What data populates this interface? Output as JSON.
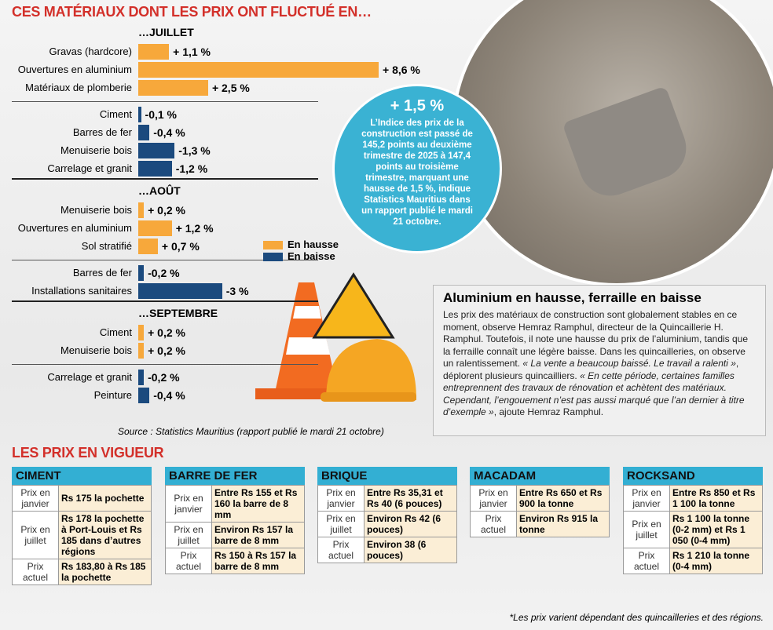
{
  "chart_data": {
    "type": "bar",
    "title": "CES MATÉRIAUX DONT LES PRIX ONT FLUCTUÉ EN…",
    "xlim": [
      0,
      9
    ],
    "legend": [
      {
        "name": "En hausse",
        "color": "#f7a83b"
      },
      {
        "name": "En baisse",
        "color": "#1b4a7e"
      }
    ],
    "groups": [
      {
        "title": "…JUILLET",
        "categories": [
          "Gravas (hardcore)",
          "Ouvertures en aluminium",
          "Matériaux de plomberie",
          "Ciment",
          "Barres de fer",
          "Menuiserie bois",
          "Carrelage et granit"
        ],
        "values": [
          1.1,
          8.6,
          2.5,
          -0.1,
          -0.4,
          -1.3,
          -1.2
        ],
        "value_labels": [
          "+ 1,1 %",
          "+ 8,6 %",
          "+ 2,5 %",
          "-0,1 %",
          "-0,4 %",
          "-1,3 %",
          "-1,2 %"
        ]
      },
      {
        "title": "…AOÛT",
        "categories": [
          "Menuiserie bois",
          "Ouvertures en aluminium",
          "Sol stratifié",
          "Barres de fer",
          "Installations sanitaires"
        ],
        "values": [
          0.2,
          1.2,
          0.7,
          -0.2,
          -3
        ],
        "value_labels": [
          "+ 0,2 %",
          "+ 1,2 %",
          "+ 0,7 %",
          "-0,2 %",
          "-3 %"
        ]
      },
      {
        "title": "…SEPTEMBRE",
        "categories": [
          "Ciment",
          "Menuiserie bois",
          "Carrelage et granit",
          "Peinture"
        ],
        "values": [
          0.2,
          0.2,
          -0.2,
          -0.4
        ],
        "value_labels": [
          "+ 0,2 %",
          "+ 0,2 %",
          "-0,2 %",
          "-0,4 %"
        ]
      }
    ],
    "source": "Source : Statistics Mauritius (rapport publié le mardi 21 octobre)"
  },
  "bubble": {
    "headline": "+ 1,5 %",
    "text": "L’Indice des prix de la construction est passé de 145,2 points au deuxième trimestre de 2025 à 147,4 points au troisième trimestre, marquant une hausse de 1,5 %, indique Statistics Mauritius dans un rapport publié le mardi 21 octobre."
  },
  "article": {
    "title": "Aluminium en hausse, ferraille en baisse",
    "body": [
      {
        "text": "Les prix des matériaux de construction sont globalement stables en ce moment, observe Hemraz Ramphul, directeur de la Quincaillerie H. Ramphul. Toutefois, il note une hausse du prix de l’aluminium, tandis que la ferraille connaît une légère baisse. Dans les quincailleries, on observe un ralentissement. ",
        "italic": false
      },
      {
        "text": "« La vente a beaucoup baissé. Le travail a ralenti »",
        "italic": true
      },
      {
        "text": ", déplorent plusieurs quincailliers. ",
        "italic": false
      },
      {
        "text": "« En cette période, certaines familles entreprennent des travaux de rénovation et achètent des matériaux. Cependant, l’engouement n’est pas aussi marqué que l’an dernier à titre d’exemple »",
        "italic": true
      },
      {
        "text": ", ajoute Hemraz Ramphul.",
        "italic": false
      }
    ]
  },
  "prices": {
    "title": "LES PRIX EN VIGUEUR",
    "tables": [
      {
        "title": "CIMENT",
        "rows": [
          [
            "Prix en janvier",
            "Rs 175 la pochette"
          ],
          [
            "Prix en juillet",
            "Rs 178 la pochette à Port-Louis et Rs 185 dans d’autres régions"
          ],
          [
            "Prix actuel",
            "Rs 183,80 à Rs 185 la pochette"
          ]
        ]
      },
      {
        "title": "BARRE DE FER",
        "rows": [
          [
            "Prix en janvier",
            "Entre Rs 155 et Rs 160 la barre de 8 mm"
          ],
          [
            "Prix en juillet",
            "Environ Rs 157 la barre de 8 mm"
          ],
          [
            "Prix actuel",
            "Rs 150 à Rs 157 la barre de 8 mm"
          ]
        ]
      },
      {
        "title": "BRIQUE",
        "rows": [
          [
            "Prix en janvier",
            "Entre Rs 35,31 et Rs 40 (6 pouces)"
          ],
          [
            "Prix en juillet",
            "Environ Rs 42 (6 pouces)"
          ],
          [
            "Prix actuel",
            "Environ 38 (6 pouces)"
          ]
        ]
      },
      {
        "title": "MACADAM",
        "rows": [
          [
            "Prix en janvier",
            "Entre Rs 650 et Rs 900 la tonne"
          ],
          [
            "Prix actuel",
            "Environ Rs 915 la tonne"
          ]
        ]
      },
      {
        "title": "ROCKSAND",
        "rows": [
          [
            "Prix en janvier",
            "Entre Rs 850 et Rs 1 100 la tonne"
          ],
          [
            "Prix en juillet",
            "Rs 1 100 la tonne (0-2 mm) et Rs 1 050 (0-4 mm)"
          ],
          [
            "Prix actuel",
            "Rs 1 210 la tonne (0-4 mm)"
          ]
        ]
      }
    ],
    "footnote": "*Les prix varient dépendant des quincailleries et des régions."
  }
}
